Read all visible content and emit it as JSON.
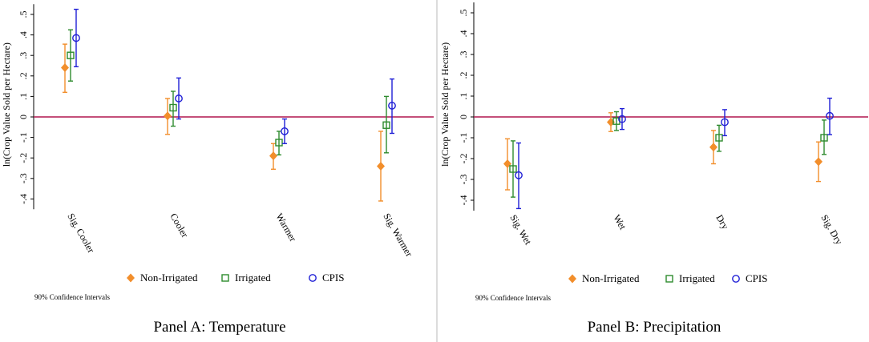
{
  "chart_data": [
    {
      "type": "scatter",
      "panel": "A",
      "title": "Panel A: Temperature",
      "ylabel": "ln(Crop Value Sold per Hectare)",
      "ylim": [
        -0.45,
        0.55
      ],
      "yticks": [
        ".5",
        ".4",
        ".3",
        ".2",
        ".1",
        "0",
        "-.1",
        "-.2",
        "-.3",
        "-.4"
      ],
      "ytick_values": [
        0.5,
        0.4,
        0.3,
        0.2,
        0.1,
        0,
        -0.1,
        -0.2,
        -0.3,
        -0.4
      ],
      "reference_line": 0,
      "categories": [
        "Sig. Cooler",
        "Cooler",
        "Warmer",
        "Sig. Warmer"
      ],
      "series": [
        {
          "name": "Non-Irrigated",
          "color": "#f28e2b",
          "marker": "diamond-filled",
          "values": [
            0.24,
            0.005,
            -0.19,
            -0.24
          ],
          "ci_low": [
            0.12,
            -0.085,
            -0.255,
            -0.41
          ],
          "ci_high": [
            0.355,
            0.09,
            -0.13,
            -0.07
          ]
        },
        {
          "name": "Irrigated",
          "color": "#2e8b2e",
          "marker": "square-hollow",
          "values": [
            0.3,
            0.045,
            -0.125,
            -0.04
          ],
          "ci_low": [
            0.175,
            -0.045,
            -0.185,
            -0.175
          ],
          "ci_high": [
            0.425,
            0.125,
            -0.07,
            0.1
          ]
        },
        {
          "name": "CPIS",
          "color": "#1f1fd6",
          "marker": "circle-hollow",
          "values": [
            0.385,
            0.09,
            -0.07,
            0.055
          ],
          "ci_low": [
            0.245,
            -0.01,
            -0.13,
            -0.08
          ],
          "ci_high": [
            0.525,
            0.19,
            -0.01,
            0.185
          ]
        }
      ],
      "note": "90% Confidence Intervals"
    },
    {
      "type": "scatter",
      "panel": "B",
      "title": "Panel B: Precipitation",
      "ylabel": "ln(Crop Value Sold per Hectare)",
      "ylim": [
        -0.45,
        0.55
      ],
      "yticks": [
        ".5",
        ".4",
        ".3",
        ".2",
        ".1",
        "0",
        "-.1",
        "-.2",
        "-.3",
        "-.4"
      ],
      "ytick_values": [
        0.5,
        0.4,
        0.3,
        0.2,
        0.1,
        0,
        -0.1,
        -0.2,
        -0.3,
        -0.4
      ],
      "reference_line": 0,
      "categories": [
        "Sig. Wet",
        "Wet",
        "Dry",
        "Sig. Dry"
      ],
      "series": [
        {
          "name": "Non-Irrigated",
          "color": "#f28e2b",
          "marker": "diamond-filled",
          "values": [
            -0.225,
            -0.025,
            -0.145,
            -0.215
          ],
          "ci_low": [
            -0.35,
            -0.07,
            -0.225,
            -0.31
          ],
          "ci_high": [
            -0.105,
            0.02,
            -0.065,
            -0.12
          ]
        },
        {
          "name": "Irrigated",
          "color": "#2e8b2e",
          "marker": "square-hollow",
          "values": [
            -0.25,
            -0.02,
            -0.1,
            -0.1
          ],
          "ci_low": [
            -0.385,
            -0.065,
            -0.165,
            -0.18
          ],
          "ci_high": [
            -0.115,
            0.025,
            -0.04,
            -0.015
          ]
        },
        {
          "name": "CPIS",
          "color": "#1f1fd6",
          "marker": "circle-hollow",
          "values": [
            -0.28,
            -0.01,
            -0.025,
            0.005
          ],
          "ci_low": [
            -0.44,
            -0.06,
            -0.09,
            -0.085
          ],
          "ci_high": [
            -0.125,
            0.04,
            0.035,
            0.09
          ]
        }
      ],
      "note": "90% Confidence Intervals"
    }
  ]
}
